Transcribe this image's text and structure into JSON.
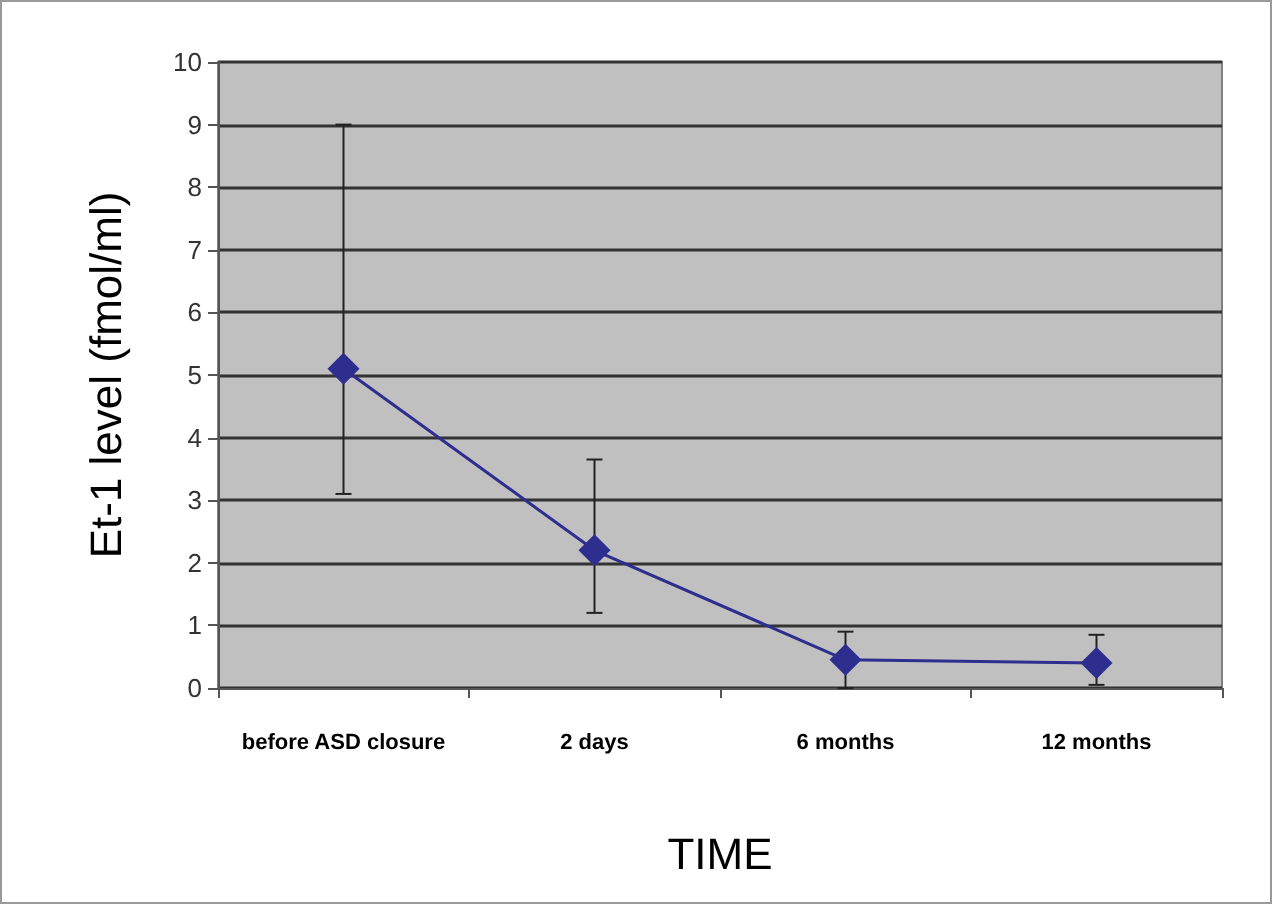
{
  "chart_data": {
    "type": "line",
    "xlabel": "TIME",
    "ylabel": "Et-1 level (fmol/ml)",
    "categories": [
      "before ASD closure",
      "2 days",
      "6 months",
      "12 months"
    ],
    "series": [
      {
        "color": "#2e2e8f",
        "values": [
          5.1,
          2.2,
          0.45,
          0.4
        ],
        "errors": [
          [
            3.1,
            9.0
          ],
          [
            1.2,
            3.65
          ],
          [
            0,
            0.9
          ],
          [
            0.05,
            0.85
          ]
        ]
      }
    ],
    "ylim": [
      0,
      10
    ],
    "yticks": [
      0,
      1,
      2,
      3,
      4,
      5,
      6,
      7,
      8,
      9,
      10
    ],
    "grid": "y",
    "marker": "diamond",
    "line_style": "solid"
  }
}
